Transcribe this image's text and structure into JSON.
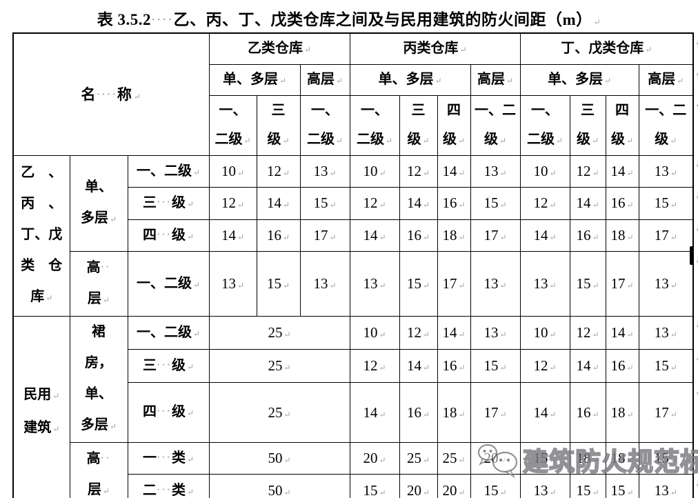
{
  "title": {
    "text": "表 3.5.2····乙、丙、丁、戊类仓库之间及与民用建筑的防火间距（m）↵"
  },
  "marks": {
    "cell_return": "↵"
  },
  "watermark": {
    "text": "建筑防火规范标准",
    "icon": "chat-bubbles"
  },
  "table": {
    "name_header": "名····称↵",
    "col_groups": [
      {
        "label": "乙类仓库↵",
        "sub": [
          {
            "label": "单、多层↵",
            "grades": [
              [
                "一、",
                "二级↵"
              ],
              [
                "三",
                "级↵"
              ]
            ]
          },
          {
            "label": "高层↵",
            "grades": [
              [
                "一、",
                "二级↵"
              ]
            ]
          }
        ]
      },
      {
        "label": "丙类仓库↵",
        "sub": [
          {
            "label": "单、多层↵",
            "grades": [
              [
                "一、",
                "二级↵"
              ],
              [
                "三",
                "级↵"
              ],
              [
                "四",
                "级↵"
              ]
            ]
          },
          {
            "label": "高层↵",
            "grades": [
              [
                "一、二",
                "级↵"
              ]
            ]
          }
        ]
      },
      {
        "label": "丁、戊类仓库↵",
        "sub": [
          {
            "label": "单、多层↵",
            "grades": [
              [
                "一、",
                "二级↵"
              ],
              [
                "三",
                "级↵"
              ],
              [
                "四",
                "级↵"
              ]
            ]
          },
          {
            "label": "高层↵",
            "grades": [
              [
                "一、二",
                "级↵"
              ]
            ]
          }
        ]
      }
    ],
    "row_groups": [
      {
        "category": [
          "乙　、",
          "丙　、",
          "丁、戊",
          "类　仓",
          "库↵"
        ],
        "sections": [
          {
            "label": [
              "单、",
              "多层↵"
            ],
            "rows": [
              {
                "grade": "一、二级↵",
                "values": [
                  10,
                  12,
                  13,
                  10,
                  12,
                  14,
                  13,
                  10,
                  12,
                  14,
                  13
                ]
              },
              {
                "grade": "三···级↵",
                "values": [
                  12,
                  14,
                  15,
                  12,
                  14,
                  16,
                  15,
                  12,
                  14,
                  16,
                  15
                ]
              },
              {
                "grade": "四···级↵",
                "values": [
                  14,
                  16,
                  17,
                  14,
                  16,
                  18,
                  17,
                  14,
                  16,
                  18,
                  17
                ]
              }
            ]
          },
          {
            "label": [
              "高··",
              "层↵"
            ],
            "rows": [
              {
                "grade": "一、二级↵",
                "values": [
                  13,
                  15,
                  13,
                  13,
                  15,
                  17,
                  13,
                  13,
                  15,
                  17,
                  13
                ]
              }
            ]
          }
        ]
      },
      {
        "category": [
          "民用↵",
          "建筑↵"
        ],
        "sections": [
          {
            "label": [
              "裙",
              "房，",
              "单、",
              "多层↵"
            ],
            "rows": [
              {
                "grade": "一、二级↵",
                "merged": 25,
                "values": [
                  10,
                  12,
                  14,
                  13,
                  10,
                  12,
                  14,
                  13
                ]
              },
              {
                "grade": "三···级↵",
                "merged": 25,
                "values": [
                  12,
                  14,
                  16,
                  15,
                  12,
                  14,
                  16,
                  15
                ]
              },
              {
                "grade": "四···级↵",
                "merged": 25,
                "values": [
                  14,
                  16,
                  18,
                  17,
                  14,
                  16,
                  18,
                  17
                ]
              }
            ]
          },
          {
            "label": [
              "高··",
              "层↵"
            ],
            "rows": [
              {
                "grade": "一···类↵",
                "merged": 50,
                "values": [
                  20,
                  25,
                  25,
                  20,
                  15,
                  18,
                  18,
                  15
                ]
              },
              {
                "grade": "二···类↵",
                "merged": 50,
                "values": [
                  15,
                  20,
                  20,
                  15,
                  13,
                  15,
                  15,
                  13
                ]
              }
            ]
          }
        ]
      }
    ]
  }
}
